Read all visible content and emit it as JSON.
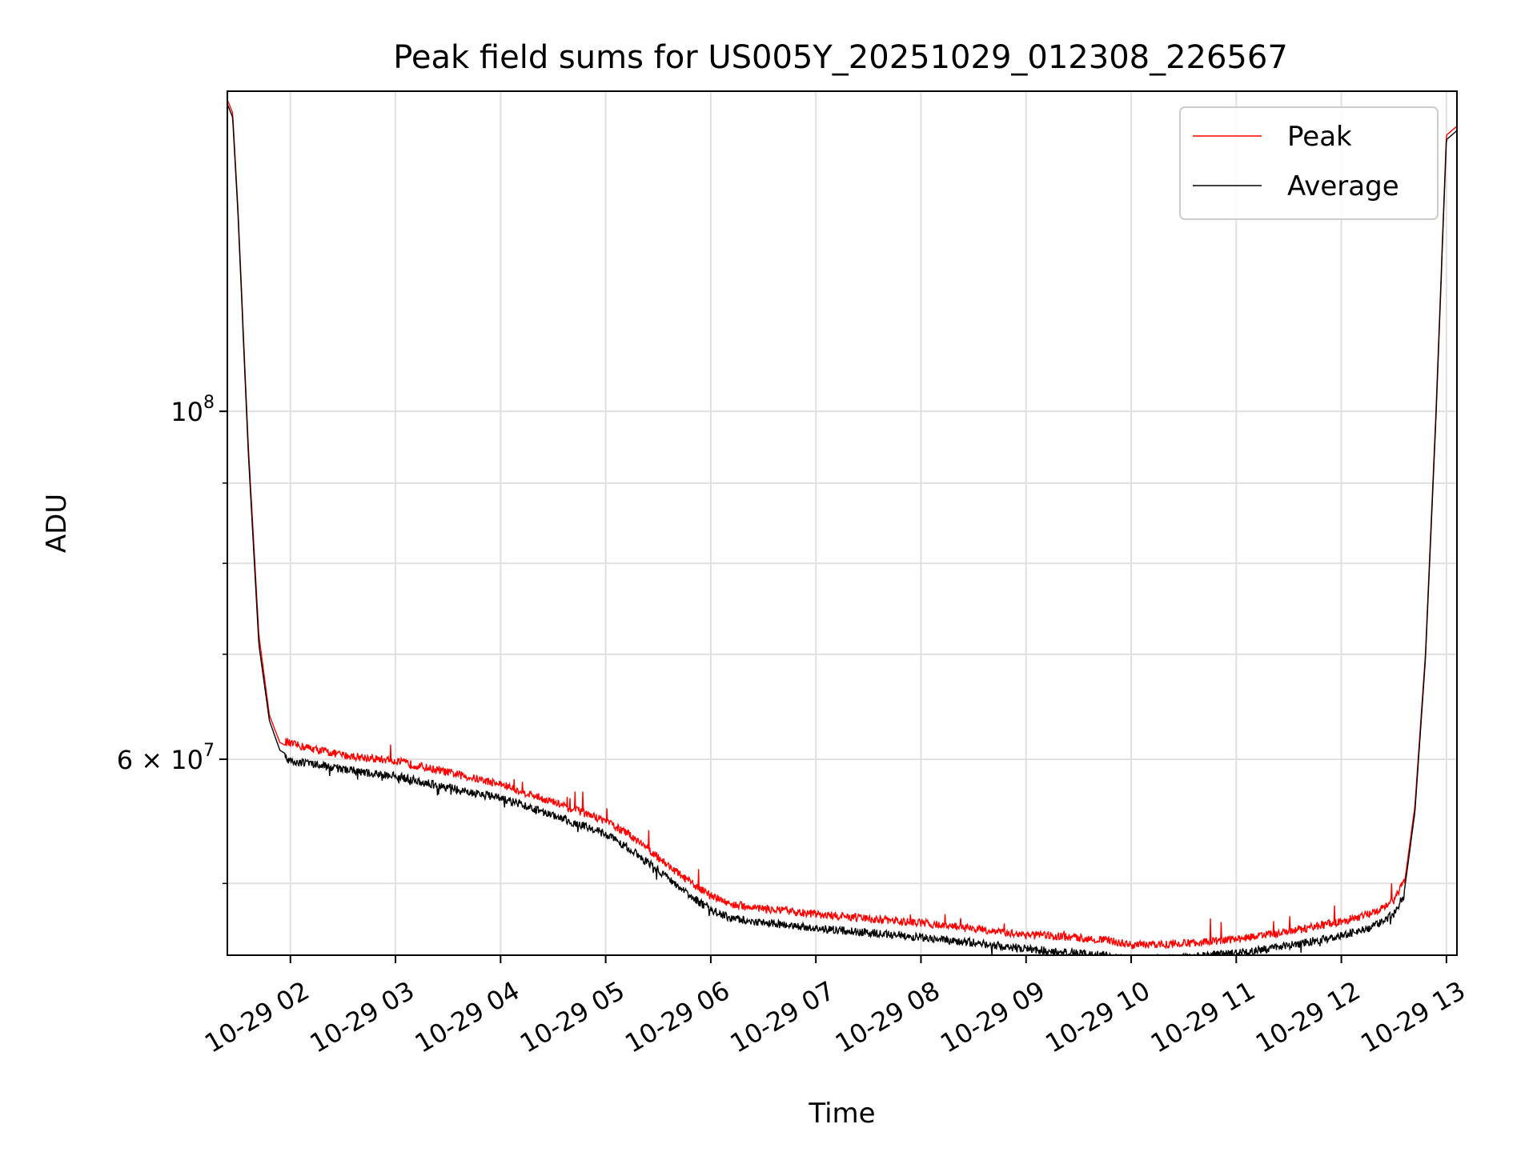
{
  "chart_data": {
    "type": "line",
    "title": "Peak field sums for US005Y_20251029_012308_226567",
    "xlabel": "Time",
    "ylabel": "ADU",
    "yscale": "log",
    "grid": true,
    "legend_position": "top-right",
    "xlim_hours": [
      1.4,
      13.1
    ],
    "ylim": [
      45000000,
      160000000
    ],
    "x_ticks": [
      {
        "hour": 2,
        "label": "10-29 02"
      },
      {
        "hour": 3,
        "label": "10-29 03"
      },
      {
        "hour": 4,
        "label": "10-29 04"
      },
      {
        "hour": 5,
        "label": "10-29 05"
      },
      {
        "hour": 6,
        "label": "10-29 06"
      },
      {
        "hour": 7,
        "label": "10-29 07"
      },
      {
        "hour": 8,
        "label": "10-29 08"
      },
      {
        "hour": 9,
        "label": "10-29 09"
      },
      {
        "hour": 10,
        "label": "10-29 10"
      },
      {
        "hour": 11,
        "label": "10-29 11"
      },
      {
        "hour": 12,
        "label": "10-29 12"
      },
      {
        "hour": 13,
        "label": "10-29 13"
      }
    ],
    "y_major_ticks": [
      {
        "value": 100000000,
        "base": "10",
        "exp": "8"
      },
      {
        "value": 60000000,
        "mant": "6 × 10",
        "exp": "7"
      }
    ],
    "y_minor_ticks": [
      50000000,
      70000000,
      80000000,
      90000000
    ],
    "series": [
      {
        "name": "Peak",
        "color": "#ff0000",
        "x": [
          1.4,
          1.45,
          1.5,
          1.6,
          1.7,
          1.8,
          1.9,
          2.0,
          2.5,
          3.0,
          3.5,
          4.0,
          4.5,
          5.0,
          5.3,
          5.6,
          5.8,
          6.0,
          6.2,
          6.5,
          7.0,
          7.5,
          8.0,
          8.5,
          9.0,
          9.5,
          9.8,
          10.0,
          10.5,
          11.0,
          11.5,
          12.0,
          12.3,
          12.5,
          12.6,
          12.7,
          12.8,
          12.9,
          13.0,
          13.1
        ],
        "y": [
          158000000,
          155000000,
          135000000,
          95000000,
          72000000,
          64000000,
          61500000,
          61000000,
          60000000,
          59500000,
          58500000,
          57500000,
          56000000,
          54500000,
          53000000,
          51000000,
          49800000,
          48800000,
          48200000,
          47900000,
          47500000,
          47200000,
          46900000,
          46500000,
          46100000,
          45900000,
          45700000,
          45400000,
          45500000,
          45800000,
          46300000,
          47000000,
          47600000,
          48500000,
          50000000,
          56000000,
          70000000,
          100000000,
          150000000,
          152000000
        ]
      },
      {
        "name": "Average",
        "color": "#000000",
        "x": [
          1.4,
          1.45,
          1.5,
          1.6,
          1.7,
          1.8,
          1.9,
          2.0,
          2.5,
          3.0,
          3.5,
          4.0,
          4.5,
          5.0,
          5.3,
          5.6,
          5.8,
          6.0,
          6.2,
          6.5,
          7.0,
          7.5,
          8.0,
          8.5,
          9.0,
          9.5,
          9.8,
          10.0,
          10.5,
          11.0,
          11.5,
          12.0,
          12.3,
          12.5,
          12.6,
          12.7,
          12.8,
          12.9,
          13.0,
          13.1
        ],
        "y": [
          157000000,
          154000000,
          134000000,
          94000000,
          71000000,
          63500000,
          60800000,
          60200000,
          59500000,
          58900000,
          57900000,
          57000000,
          55600000,
          54100000,
          52600000,
          50600000,
          49400000,
          48400000,
          47800000,
          47500000,
          47100000,
          46800000,
          46500000,
          46100000,
          45700000,
          45400000,
          45200000,
          45000000,
          45100000,
          45400000,
          45900000,
          46600000,
          47200000,
          48100000,
          49500000,
          55500000,
          69500000,
          99000000,
          149000000,
          151000000
        ]
      }
    ]
  }
}
